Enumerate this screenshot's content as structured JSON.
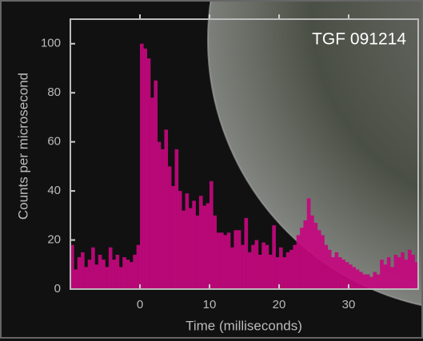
{
  "chart_data": {
    "type": "histogram",
    "title": "TGF 091214",
    "x_label": "Time (milliseconds)",
    "y_label": "Counts per microsecond",
    "bins": [
      -10,
      -9.5,
      -9,
      -8.5,
      -8,
      -7.5,
      -7,
      -6.5,
      -6,
      -5.5,
      -5,
      -4.5,
      -4,
      -3.5,
      -3,
      -2.5,
      -2,
      -1.5,
      -1,
      -0.5,
      0,
      0.5,
      1,
      1.5,
      2,
      2.5,
      3,
      3.5,
      4,
      4.5,
      5,
      5.5,
      6,
      6.5,
      7,
      7.5,
      8,
      8.5,
      9,
      9.5,
      10,
      10.5,
      11,
      11.5,
      12,
      12.5,
      13,
      13.5,
      14,
      14.5,
      15,
      15.5,
      16,
      16.5,
      17,
      17.5,
      18,
      18.5,
      19,
      19.5,
      20,
      20.5,
      21,
      21.5,
      22,
      22.5,
      23,
      23.5,
      24,
      24.5,
      25,
      25.5,
      26,
      26.5,
      27,
      27.5,
      28,
      28.5,
      29,
      29.5,
      30,
      30.5,
      31,
      31.5,
      32,
      32.5,
      33,
      33.5,
      34,
      34.5,
      35,
      35.5,
      36,
      36.5,
      37,
      37.5,
      38,
      38.5,
      39,
      39.5,
      40
    ],
    "values": [
      18,
      8,
      13,
      15,
      9,
      12,
      17,
      10,
      14,
      12,
      9,
      17,
      12,
      14,
      9,
      13,
      12,
      11,
      14,
      18,
      100,
      98,
      94,
      78,
      85,
      60,
      57,
      65,
      50,
      42,
      57,
      40,
      32,
      39,
      33,
      36,
      30,
      38,
      34,
      35,
      44,
      30,
      23,
      23,
      22,
      23,
      17,
      24,
      24,
      18,
      29,
      15,
      18,
      20,
      14,
      19,
      18,
      14,
      26,
      13,
      17,
      13,
      15,
      16,
      18,
      22,
      25,
      28,
      37,
      30,
      27,
      24,
      22,
      18,
      16,
      13,
      15,
      13,
      12,
      11,
      10,
      9,
      8,
      7,
      6,
      6,
      5,
      7,
      6,
      12,
      10,
      13,
      9,
      14,
      13,
      15,
      12,
      16,
      14,
      11
    ],
    "color": "#c4087e",
    "xlim": [
      -10,
      40
    ],
    "xticks": [
      0,
      10,
      20,
      30
    ],
    "ylim": [
      0,
      110
    ],
    "yticks": [
      0,
      20,
      40,
      60,
      80,
      100
    ]
  }
}
